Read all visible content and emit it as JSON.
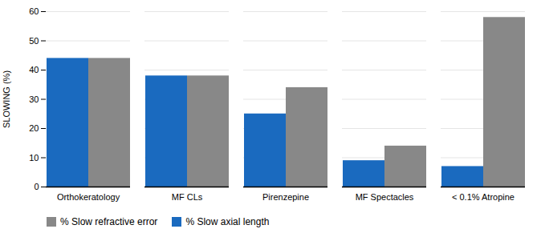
{
  "chart_data": {
    "type": "bar",
    "categories": [
      "Orthokeratology",
      "MF CLs",
      "Pirenzepine",
      "MF Spectacles",
      "< 0.1% Atropine"
    ],
    "series": [
      {
        "name": "% Slow refractive error",
        "color": "#888888",
        "values": [
          44,
          38,
          34,
          14,
          58
        ]
      },
      {
        "name": "% Slow axial length",
        "color": "#1a6abf",
        "values": [
          44,
          38,
          25,
          9,
          7
        ]
      }
    ],
    "ylabel": "SLOWING (%)",
    "ylim": [
      0,
      60
    ],
    "yticks": [
      0,
      10,
      20,
      30,
      40,
      50,
      60
    ],
    "grid": true,
    "legend": "lower left"
  }
}
